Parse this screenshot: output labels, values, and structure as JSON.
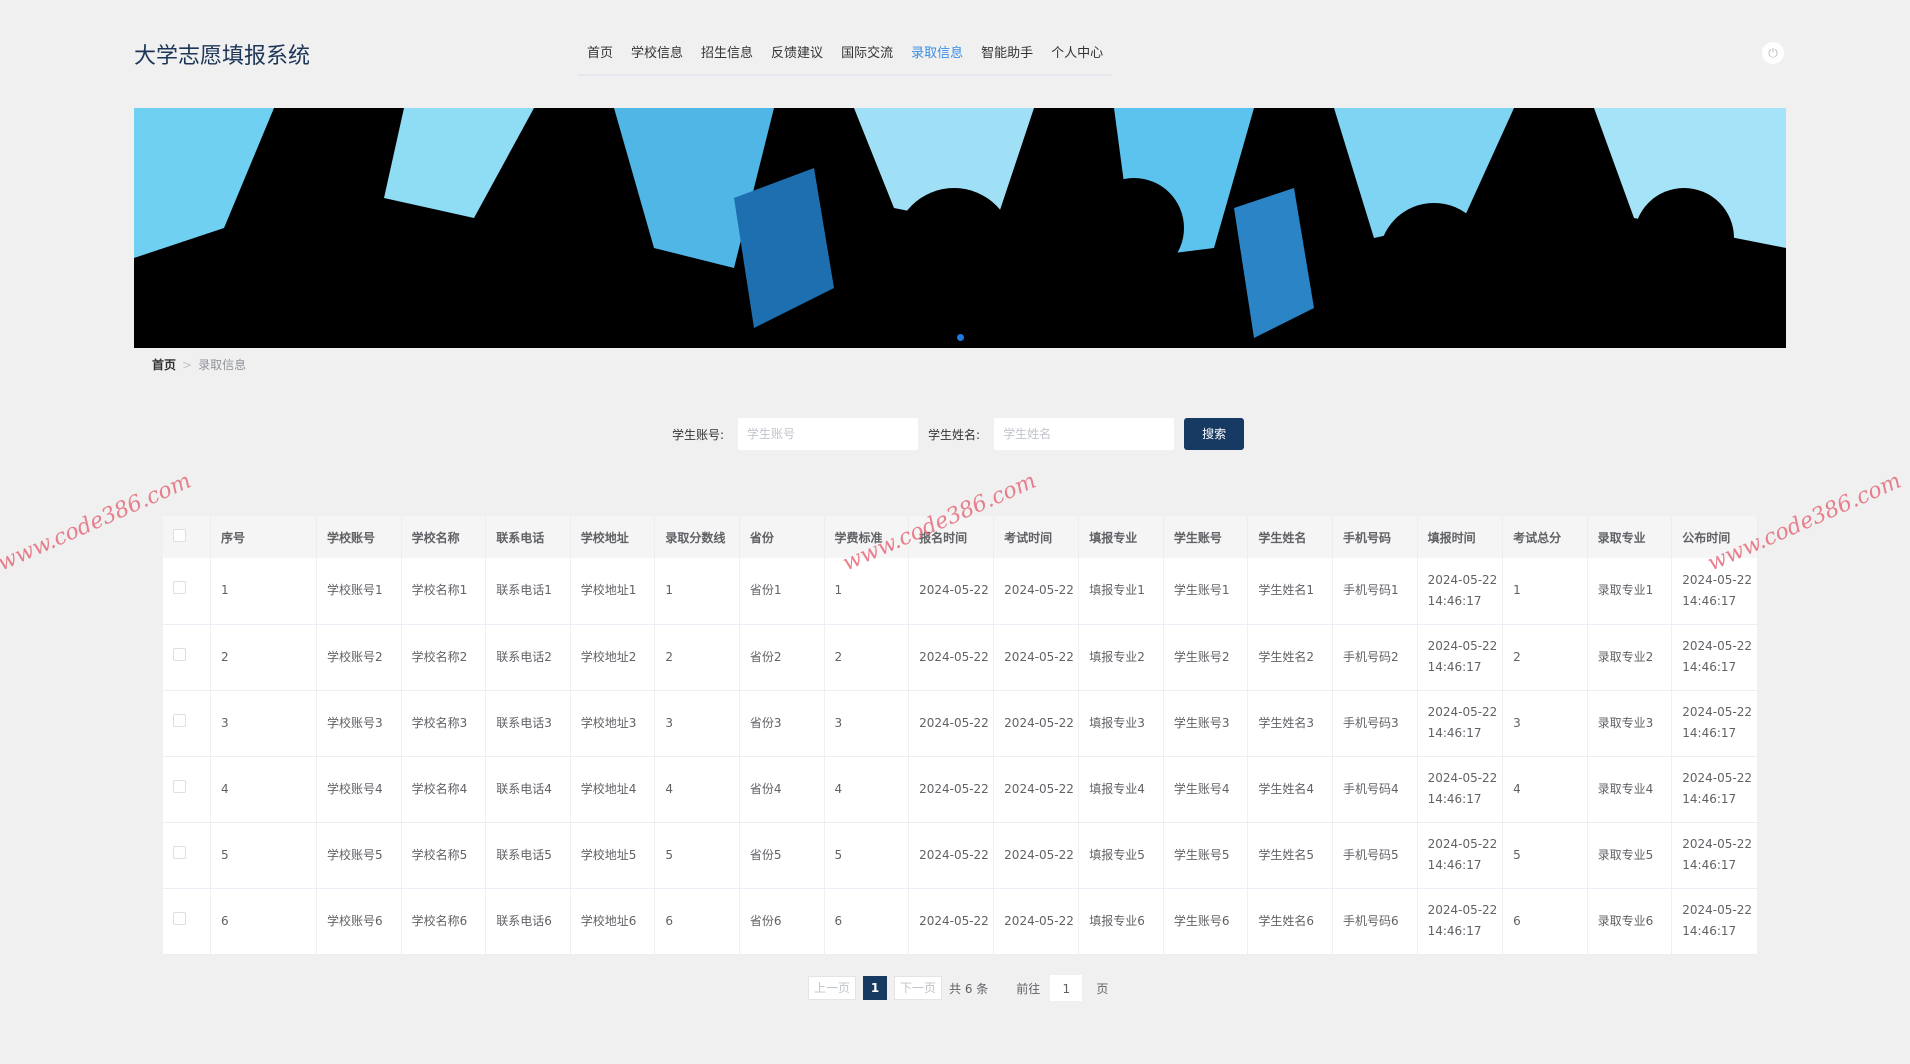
{
  "header": {
    "title": "大学志愿填报系统",
    "nav": [
      "首页",
      "学校信息",
      "招生信息",
      "反馈建议",
      "国际交流",
      "录取信息",
      "智能助手",
      "个人中心"
    ],
    "active_index": 5,
    "power_icon": "power-icon"
  },
  "breadcrumb": {
    "home": "首页",
    "separator": ">",
    "current": "录取信息"
  },
  "search": {
    "account_label": "学生账号:",
    "account_placeholder": "学生账号",
    "name_label": "学生姓名:",
    "name_placeholder": "学生姓名",
    "button": "搜索"
  },
  "table": {
    "headers": [
      "序号",
      "学校账号",
      "学校名称",
      "联系电话",
      "学校地址",
      "录取分数线",
      "省份",
      "学费标准",
      "报名时间",
      "考试时间",
      "填报专业",
      "学生账号",
      "学生姓名",
      "手机号码",
      "填报时间",
      "考试总分",
      "录取专业",
      "公布时间"
    ],
    "rows": [
      [
        "1",
        "学校账号1",
        "学校名称1",
        "联系电话1",
        "学校地址1",
        "1",
        "省份1",
        "1",
        "2024-05-22",
        "2024-05-22",
        "填报专业1",
        "学生账号1",
        "学生姓名1",
        "手机号码1",
        "2024-05-22 14:46:17",
        "1",
        "录取专业1",
        "2024-05-22 14:46:17"
      ],
      [
        "2",
        "学校账号2",
        "学校名称2",
        "联系电话2",
        "学校地址2",
        "2",
        "省份2",
        "2",
        "2024-05-22",
        "2024-05-22",
        "填报专业2",
        "学生账号2",
        "学生姓名2",
        "手机号码2",
        "2024-05-22 14:46:17",
        "2",
        "录取专业2",
        "2024-05-22 14:46:17"
      ],
      [
        "3",
        "学校账号3",
        "学校名称3",
        "联系电话3",
        "学校地址3",
        "3",
        "省份3",
        "3",
        "2024-05-22",
        "2024-05-22",
        "填报专业3",
        "学生账号3",
        "学生姓名3",
        "手机号码3",
        "2024-05-22 14:46:17",
        "3",
        "录取专业3",
        "2024-05-22 14:46:17"
      ],
      [
        "4",
        "学校账号4",
        "学校名称4",
        "联系电话4",
        "学校地址4",
        "4",
        "省份4",
        "4",
        "2024-05-22",
        "2024-05-22",
        "填报专业4",
        "学生账号4",
        "学生姓名4",
        "手机号码4",
        "2024-05-22 14:46:17",
        "4",
        "录取专业4",
        "2024-05-22 14:46:17"
      ],
      [
        "5",
        "学校账号5",
        "学校名称5",
        "联系电话5",
        "学校地址5",
        "5",
        "省份5",
        "5",
        "2024-05-22",
        "2024-05-22",
        "填报专业5",
        "学生账号5",
        "学生姓名5",
        "手机号码5",
        "2024-05-22 14:46:17",
        "5",
        "录取专业5",
        "2024-05-22 14:46:17"
      ],
      [
        "6",
        "学校账号6",
        "学校名称6",
        "联系电话6",
        "学校地址6",
        "6",
        "省份6",
        "6",
        "2024-05-22",
        "2024-05-22",
        "填报专业6",
        "学生账号6",
        "学生姓名6",
        "手机号码6",
        "2024-05-22 14:46:17",
        "6",
        "录取专业6",
        "2024-05-22 14:46:17"
      ]
    ]
  },
  "pagination": {
    "prev": "上一页",
    "current": "1",
    "next": "下一页",
    "total": "共 6 条",
    "goto": "前往",
    "goto_value": "1",
    "page_unit": "页"
  },
  "watermark": "www.code386.com",
  "colors": {
    "primary": "#173a63",
    "active_nav": "#3a8ee6",
    "banner_blue": "#5bc0eb"
  }
}
